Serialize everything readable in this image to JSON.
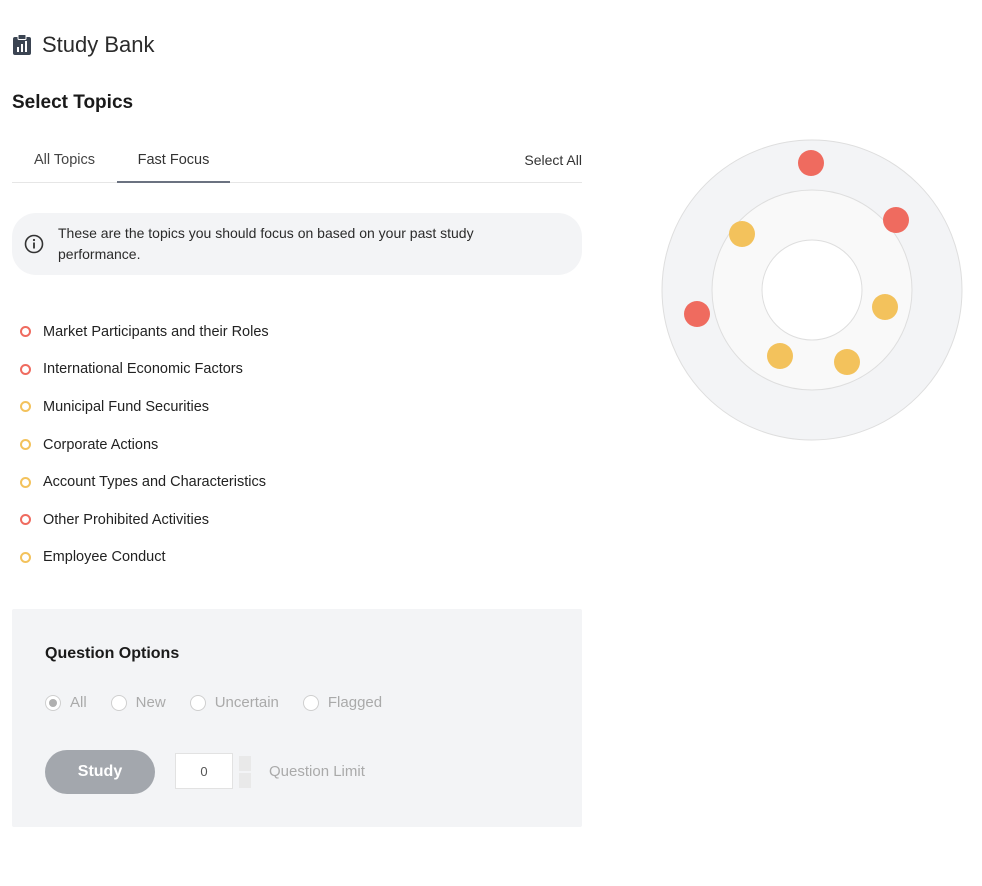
{
  "header": {
    "title": "Study Bank",
    "icon": "clipboard-icon"
  },
  "section_title": "Select Topics",
  "tabs": [
    {
      "label": "All Topics"
    },
    {
      "label": "Fast Focus",
      "active": true
    }
  ],
  "select_all_label": "Select All",
  "info": {
    "icon": "info-icon",
    "text": "These are the topics you should focus on based on your past study performance."
  },
  "colors": {
    "red": "#ef6b5f",
    "yellow": "#f3c25c"
  },
  "topics": [
    {
      "label": "Market Participants and their Roles",
      "status": "red"
    },
    {
      "label": "International Economic Factors",
      "status": "red"
    },
    {
      "label": "Municipal Fund Securities",
      "status": "yellow"
    },
    {
      "label": "Corporate Actions",
      "status": "yellow"
    },
    {
      "label": "Account Types and Characteristics",
      "status": "yellow"
    },
    {
      "label": "Other Prohibited Activities",
      "status": "red"
    },
    {
      "label": "Employee Conduct",
      "status": "yellow"
    }
  ],
  "question_options": {
    "title": "Question Options",
    "radios": [
      {
        "label": "All",
        "checked": true
      },
      {
        "label": "New",
        "checked": false
      },
      {
        "label": "Uncertain",
        "checked": false
      },
      {
        "label": "Flagged",
        "checked": false
      }
    ],
    "study_label": "Study",
    "limit_value": "0",
    "limit_label": "Question Limit"
  },
  "target_dots": [
    "red",
    "red",
    "yellow",
    "yellow",
    "red",
    "yellow",
    "yellow"
  ]
}
